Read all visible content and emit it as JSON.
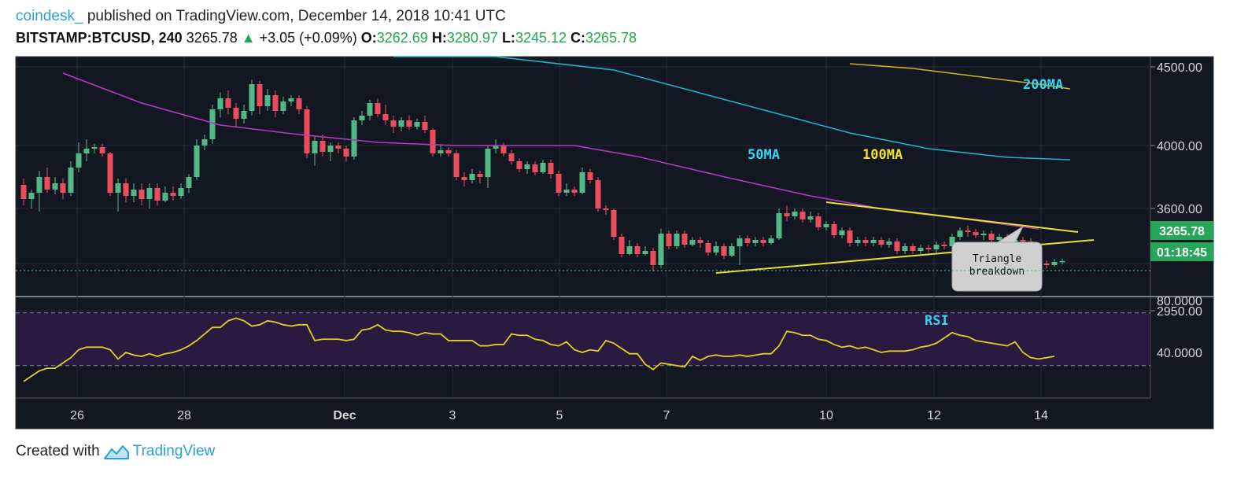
{
  "header": {
    "author": "coindesk_",
    "published_text": "published on TradingView.com, December 14, 2018 10:41 UTC",
    "symbol": "BITSTAMP:BTCUSD, 240",
    "last": "3265.78",
    "change": "+3.05 (+0.09%)",
    "o_label": "O:",
    "o": "3262.69",
    "h_label": "H:",
    "h": "3280.97",
    "l_label": "L:",
    "l": "3245.12",
    "c_label": "C:",
    "c": "3265.78"
  },
  "footer": {
    "created_with": "Created with",
    "brand": "TradingView"
  },
  "colors": {
    "bg": "#131722",
    "up": "#53b987",
    "down": "#eb4d5c",
    "ma50": "#b03bc4",
    "ma100": "#1fb3c4",
    "ma200": "#c8b41e",
    "rsi": "#e0d020",
    "trend": "#e8e030",
    "label_cyan": "#33d6f0",
    "label_yellow": "#f2e12b"
  },
  "chart_data": [
    {
      "type": "candlestick",
      "x_ticks": [
        "26",
        "28",
        "Dec",
        "3",
        "5",
        "7",
        "10",
        "12",
        "14"
      ],
      "y_ticks": [
        "4500.00",
        "4000.00",
        "3600.00",
        "2950.00"
      ],
      "y_tick_values": [
        4500,
        4000,
        3600,
        2950
      ],
      "price_label": "3265.78",
      "countdown_label": "01:18:45",
      "annotation": "Triangle breakdown",
      "ma_labels": {
        "ma50": "50MA",
        "ma100": "100MA",
        "ma200": "200MA"
      },
      "candles": [
        {
          "o": 3750,
          "c": 3660,
          "h": 3790,
          "l": 3620
        },
        {
          "o": 3660,
          "c": 3700,
          "h": 3720,
          "l": 3600
        },
        {
          "o": 3700,
          "c": 3800,
          "h": 3840,
          "l": 3580
        },
        {
          "o": 3800,
          "c": 3720,
          "h": 3860,
          "l": 3700
        },
        {
          "o": 3720,
          "c": 3760,
          "h": 3800,
          "l": 3690
        },
        {
          "o": 3760,
          "c": 3700,
          "h": 3790,
          "l": 3660
        },
        {
          "o": 3700,
          "c": 3860,
          "h": 3900,
          "l": 3680
        },
        {
          "o": 3860,
          "c": 3950,
          "h": 4020,
          "l": 3830
        },
        {
          "o": 3950,
          "c": 3980,
          "h": 4040,
          "l": 3900
        },
        {
          "o": 3980,
          "c": 3990,
          "h": 4010,
          "l": 3950
        },
        {
          "o": 3990,
          "c": 3950,
          "h": 4010,
          "l": 3930
        },
        {
          "o": 3950,
          "c": 3700,
          "h": 3960,
          "l": 3680
        },
        {
          "o": 3700,
          "c": 3760,
          "h": 3790,
          "l": 3580
        },
        {
          "o": 3760,
          "c": 3680,
          "h": 3790,
          "l": 3640
        },
        {
          "o": 3680,
          "c": 3720,
          "h": 3760,
          "l": 3640
        },
        {
          "o": 3720,
          "c": 3660,
          "h": 3760,
          "l": 3620
        },
        {
          "o": 3660,
          "c": 3730,
          "h": 3760,
          "l": 3600
        },
        {
          "o": 3730,
          "c": 3650,
          "h": 3760,
          "l": 3620
        },
        {
          "o": 3650,
          "c": 3700,
          "h": 3740,
          "l": 3640
        },
        {
          "o": 3700,
          "c": 3680,
          "h": 3740,
          "l": 3650
        },
        {
          "o": 3680,
          "c": 3730,
          "h": 3760,
          "l": 3660
        },
        {
          "o": 3730,
          "c": 3800,
          "h": 3820,
          "l": 3700
        },
        {
          "o": 3800,
          "c": 4000,
          "h": 4040,
          "l": 3780
        },
        {
          "o": 4000,
          "c": 4040,
          "h": 4070,
          "l": 3970
        },
        {
          "o": 4040,
          "c": 4230,
          "h": 4260,
          "l": 4010
        },
        {
          "o": 4230,
          "c": 4300,
          "h": 4340,
          "l": 4180
        },
        {
          "o": 4300,
          "c": 4240,
          "h": 4350,
          "l": 4200
        },
        {
          "o": 4240,
          "c": 4170,
          "h": 4270,
          "l": 4120
        },
        {
          "o": 4170,
          "c": 4220,
          "h": 4260,
          "l": 4140
        },
        {
          "o": 4220,
          "c": 4390,
          "h": 4420,
          "l": 4190
        },
        {
          "o": 4390,
          "c": 4250,
          "h": 4410,
          "l": 4200
        },
        {
          "o": 4250,
          "c": 4320,
          "h": 4360,
          "l": 4220
        },
        {
          "o": 4320,
          "c": 4220,
          "h": 4350,
          "l": 4180
        },
        {
          "o": 4220,
          "c": 4280,
          "h": 4310,
          "l": 4200
        },
        {
          "o": 4280,
          "c": 4300,
          "h": 4320,
          "l": 4250
        },
        {
          "o": 4300,
          "c": 4230,
          "h": 4320,
          "l": 4200
        },
        {
          "o": 4230,
          "c": 3950,
          "h": 4250,
          "l": 3920
        },
        {
          "o": 3950,
          "c": 4030,
          "h": 4060,
          "l": 3870
        },
        {
          "o": 4030,
          "c": 3960,
          "h": 4070,
          "l": 3930
        },
        {
          "o": 3960,
          "c": 4000,
          "h": 4020,
          "l": 3900
        },
        {
          "o": 4000,
          "c": 3980,
          "h": 4020,
          "l": 3950
        },
        {
          "o": 3980,
          "c": 3930,
          "h": 4000,
          "l": 3900
        },
        {
          "o": 3930,
          "c": 4160,
          "h": 4180,
          "l": 3910
        },
        {
          "o": 4160,
          "c": 4190,
          "h": 4220,
          "l": 4130
        },
        {
          "o": 4190,
          "c": 4270,
          "h": 4290,
          "l": 4160
        },
        {
          "o": 4270,
          "c": 4200,
          "h": 4300,
          "l": 4180
        },
        {
          "o": 4200,
          "c": 4160,
          "h": 4260,
          "l": 4130
        },
        {
          "o": 4160,
          "c": 4120,
          "h": 4190,
          "l": 4080
        },
        {
          "o": 4120,
          "c": 4160,
          "h": 4180,
          "l": 4090
        },
        {
          "o": 4160,
          "c": 4120,
          "h": 4190,
          "l": 4100
        },
        {
          "o": 4120,
          "c": 4150,
          "h": 4170,
          "l": 4100
        },
        {
          "o": 4150,
          "c": 4100,
          "h": 4190,
          "l": 4080
        },
        {
          "o": 4100,
          "c": 3950,
          "h": 4110,
          "l": 3930
        },
        {
          "o": 3950,
          "c": 3970,
          "h": 4000,
          "l": 3930
        },
        {
          "o": 3970,
          "c": 3950,
          "h": 3990,
          "l": 3930
        },
        {
          "o": 3950,
          "c": 3800,
          "h": 3970,
          "l": 3780
        },
        {
          "o": 3800,
          "c": 3780,
          "h": 3830,
          "l": 3740
        },
        {
          "o": 3780,
          "c": 3820,
          "h": 3850,
          "l": 3760
        },
        {
          "o": 3820,
          "c": 3800,
          "h": 3840,
          "l": 3760
        },
        {
          "o": 3800,
          "c": 3980,
          "h": 4000,
          "l": 3730
        },
        {
          "o": 3980,
          "c": 4000,
          "h": 4040,
          "l": 3950
        },
        {
          "o": 4000,
          "c": 3950,
          "h": 4020,
          "l": 3930
        },
        {
          "o": 3950,
          "c": 3900,
          "h": 3970,
          "l": 3880
        },
        {
          "o": 3900,
          "c": 3850,
          "h": 3920,
          "l": 3830
        },
        {
          "o": 3850,
          "c": 3880,
          "h": 3900,
          "l": 3820
        },
        {
          "o": 3880,
          "c": 3830,
          "h": 3900,
          "l": 3810
        },
        {
          "o": 3830,
          "c": 3890,
          "h": 3910,
          "l": 3820
        },
        {
          "o": 3890,
          "c": 3820,
          "h": 3910,
          "l": 3790
        },
        {
          "o": 3820,
          "c": 3700,
          "h": 3840,
          "l": 3680
        },
        {
          "o": 3700,
          "c": 3720,
          "h": 3760,
          "l": 3680
        },
        {
          "o": 3720,
          "c": 3700,
          "h": 3740,
          "l": 3680
        },
        {
          "o": 3700,
          "c": 3830,
          "h": 3860,
          "l": 3690
        },
        {
          "o": 3830,
          "c": 3780,
          "h": 3850,
          "l": 3760
        },
        {
          "o": 3780,
          "c": 3600,
          "h": 3800,
          "l": 3580
        },
        {
          "o": 3600,
          "c": 3590,
          "h": 3620,
          "l": 3560
        },
        {
          "o": 3590,
          "c": 3420,
          "h": 3600,
          "l": 3400
        },
        {
          "o": 3420,
          "c": 3310,
          "h": 3440,
          "l": 3290
        },
        {
          "o": 3310,
          "c": 3360,
          "h": 3400,
          "l": 3300
        },
        {
          "o": 3360,
          "c": 3310,
          "h": 3380,
          "l": 3290
        },
        {
          "o": 3310,
          "c": 3330,
          "h": 3360,
          "l": 3300
        },
        {
          "o": 3330,
          "c": 3240,
          "h": 3350,
          "l": 3200
        },
        {
          "o": 3240,
          "c": 3440,
          "h": 3470,
          "l": 3220
        },
        {
          "o": 3440,
          "c": 3360,
          "h": 3460,
          "l": 3340
        },
        {
          "o": 3360,
          "c": 3440,
          "h": 3460,
          "l": 3340
        },
        {
          "o": 3440,
          "c": 3370,
          "h": 3460,
          "l": 3350
        },
        {
          "o": 3370,
          "c": 3400,
          "h": 3420,
          "l": 3360
        },
        {
          "o": 3400,
          "c": 3380,
          "h": 3420,
          "l": 3350
        },
        {
          "o": 3380,
          "c": 3320,
          "h": 3400,
          "l": 3300
        },
        {
          "o": 3320,
          "c": 3360,
          "h": 3390,
          "l": 3300
        },
        {
          "o": 3360,
          "c": 3300,
          "h": 3380,
          "l": 3280
        },
        {
          "o": 3300,
          "c": 3360,
          "h": 3380,
          "l": 3290
        },
        {
          "o": 3360,
          "c": 3410,
          "h": 3430,
          "l": 3240
        },
        {
          "o": 3410,
          "c": 3380,
          "h": 3430,
          "l": 3360
        },
        {
          "o": 3380,
          "c": 3400,
          "h": 3420,
          "l": 3360
        },
        {
          "o": 3400,
          "c": 3380,
          "h": 3420,
          "l": 3360
        },
        {
          "o": 3380,
          "c": 3410,
          "h": 3430,
          "l": 3370
        },
        {
          "o": 3410,
          "c": 3570,
          "h": 3600,
          "l": 3400
        },
        {
          "o": 3570,
          "c": 3550,
          "h": 3620,
          "l": 3520
        },
        {
          "o": 3550,
          "c": 3580,
          "h": 3600,
          "l": 3530
        },
        {
          "o": 3580,
          "c": 3530,
          "h": 3600,
          "l": 3510
        },
        {
          "o": 3530,
          "c": 3550,
          "h": 3580,
          "l": 3510
        },
        {
          "o": 3550,
          "c": 3480,
          "h": 3570,
          "l": 3460
        },
        {
          "o": 3480,
          "c": 3500,
          "h": 3520,
          "l": 3460
        },
        {
          "o": 3500,
          "c": 3430,
          "h": 3520,
          "l": 3410
        },
        {
          "o": 3430,
          "c": 3460,
          "h": 3480,
          "l": 3410
        },
        {
          "o": 3460,
          "c": 3380,
          "h": 3480,
          "l": 3360
        },
        {
          "o": 3380,
          "c": 3400,
          "h": 3420,
          "l": 3360
        },
        {
          "o": 3400,
          "c": 3380,
          "h": 3420,
          "l": 3360
        },
        {
          "o": 3380,
          "c": 3400,
          "h": 3420,
          "l": 3360
        },
        {
          "o": 3400,
          "c": 3370,
          "h": 3420,
          "l": 3350
        },
        {
          "o": 3370,
          "c": 3390,
          "h": 3410,
          "l": 3350
        },
        {
          "o": 3390,
          "c": 3330,
          "h": 3410,
          "l": 3310
        },
        {
          "o": 3330,
          "c": 3360,
          "h": 3380,
          "l": 3310
        },
        {
          "o": 3360,
          "c": 3330,
          "h": 3380,
          "l": 3310
        },
        {
          "o": 3330,
          "c": 3350,
          "h": 3370,
          "l": 3310
        },
        {
          "o": 3350,
          "c": 3340,
          "h": 3370,
          "l": 3320
        },
        {
          "o": 3340,
          "c": 3370,
          "h": 3390,
          "l": 3320
        },
        {
          "o": 3370,
          "c": 3360,
          "h": 3390,
          "l": 3340
        },
        {
          "o": 3360,
          "c": 3420,
          "h": 3440,
          "l": 3340
        },
        {
          "o": 3420,
          "c": 3460,
          "h": 3480,
          "l": 3400
        },
        {
          "o": 3460,
          "c": 3450,
          "h": 3490,
          "l": 3420
        },
        {
          "o": 3450,
          "c": 3430,
          "h": 3470,
          "l": 3410
        },
        {
          "o": 3430,
          "c": 3440,
          "h": 3460,
          "l": 3400
        },
        {
          "o": 3440,
          "c": 3400,
          "h": 3460,
          "l": 3380
        },
        {
          "o": 3400,
          "c": 3420,
          "h": 3440,
          "l": 3380
        },
        {
          "o": 3420,
          "c": 3380,
          "h": 3440,
          "l": 3360
        },
        {
          "o": 3380,
          "c": 3400,
          "h": 3420,
          "l": 3360
        },
        {
          "o": 3400,
          "c": 3390,
          "h": 3420,
          "l": 3370
        },
        {
          "o": 3390,
          "c": 3330,
          "h": 3410,
          "l": 3310
        },
        {
          "o": 3330,
          "c": 3250,
          "h": 3340,
          "l": 3230
        },
        {
          "o": 3250,
          "c": 3240,
          "h": 3270,
          "l": 3220
        },
        {
          "o": 3240,
          "c": 3260,
          "h": 3280,
          "l": 3230
        },
        {
          "o": 3262.69,
          "c": 3265.78,
          "h": 3280.97,
          "l": 3245.12
        }
      ],
      "ma50": [
        {
          "i": 5,
          "v": 4460
        },
        {
          "i": 15,
          "v": 4270
        },
        {
          "i": 25,
          "v": 4130
        },
        {
          "i": 35,
          "v": 4070
        },
        {
          "i": 45,
          "v": 4020
        },
        {
          "i": 55,
          "v": 4000
        },
        {
          "i": 70,
          "v": 4000
        },
        {
          "i": 78,
          "v": 3930
        },
        {
          "i": 90,
          "v": 3790
        },
        {
          "i": 100,
          "v": 3680
        },
        {
          "i": 110,
          "v": 3590
        },
        {
          "i": 120,
          "v": 3530
        },
        {
          "i": 129,
          "v": 3470
        }
      ],
      "ma100": [
        {
          "i": 47,
          "v": 4700
        },
        {
          "i": 60,
          "v": 4610
        },
        {
          "i": 75,
          "v": 4480
        },
        {
          "i": 90,
          "v": 4280
        },
        {
          "i": 105,
          "v": 4080
        },
        {
          "i": 115,
          "v": 3980
        },
        {
          "i": 125,
          "v": 3925
        },
        {
          "i": 133,
          "v": 3910
        }
      ],
      "ma200": [
        {
          "i": 105,
          "v": 4520
        },
        {
          "i": 113,
          "v": 4490
        },
        {
          "i": 121,
          "v": 4440
        },
        {
          "i": 129,
          "v": 4390
        },
        {
          "i": 133,
          "v": 4360
        }
      ],
      "trendlines": [
        {
          "i1": 102,
          "v1": 3640,
          "i2": 134,
          "v2": 3450
        },
        {
          "i1": 88,
          "v1": 3190,
          "i2": 136,
          "v2": 3400
        }
      ]
    },
    {
      "type": "line",
      "series": [
        {
          "name": "RSI",
          "values": [
            18,
            22,
            26,
            28,
            28,
            32,
            36,
            42,
            44,
            44,
            44,
            42,
            35,
            40,
            38,
            37,
            39,
            37,
            39,
            40,
            42,
            45,
            49,
            54,
            59,
            59,
            64,
            66,
            64,
            60,
            61,
            64,
            63,
            61,
            60,
            61,
            61,
            49,
            50,
            50,
            50,
            49,
            50,
            57,
            58,
            61,
            57,
            56,
            56,
            55,
            53,
            55,
            54,
            54,
            49,
            49,
            49,
            49,
            45,
            45,
            46,
            46,
            54,
            53,
            53,
            50,
            49,
            46,
            45,
            48,
            42,
            40,
            42,
            41,
            49,
            47,
            43,
            39,
            39,
            31,
            27,
            32,
            31,
            30,
            29,
            37,
            34,
            37,
            38,
            37,
            37,
            38,
            37,
            38,
            39,
            39,
            45,
            56,
            55,
            53,
            53,
            50,
            49,
            46,
            44,
            45,
            43,
            44,
            42,
            40,
            41,
            41,
            41,
            42,
            44,
            45,
            47,
            51,
            55,
            53,
            52,
            49,
            48,
            47,
            46,
            45,
            48,
            40,
            36,
            35,
            36,
            37
          ]
        }
      ],
      "y_ticks": [
        "80.0000",
        "40.0000"
      ],
      "y_tick_values": [
        80,
        40
      ],
      "band": [
        30,
        70
      ],
      "label": "RSI"
    }
  ]
}
